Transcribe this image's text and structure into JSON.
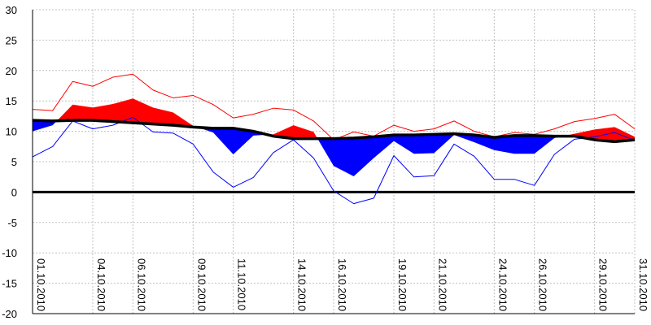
{
  "chart_data": {
    "type": "area",
    "title": "",
    "xlabel": "",
    "ylabel": "",
    "ylim": [
      -20,
      30
    ],
    "y_ticks": [
      30,
      25,
      20,
      15,
      10,
      5,
      0,
      -5,
      -10,
      -15,
      -20
    ],
    "grid": true,
    "x_tick_labels": [
      {
        "day": 1,
        "label": "01.10.2010"
      },
      {
        "day": 4,
        "label": "04.10.2010"
      },
      {
        "day": 6,
        "label": "06.10.2010"
      },
      {
        "day": 9,
        "label": "09.10.2010"
      },
      {
        "day": 11,
        "label": "11.10.2010"
      },
      {
        "day": 14,
        "label": "14.10.2010"
      },
      {
        "day": 16,
        "label": "16.10.2010"
      },
      {
        "day": 19,
        "label": "19.10.2010"
      },
      {
        "day": 21,
        "label": "21.10.2010"
      },
      {
        "day": 24,
        "label": "24.10.2010"
      },
      {
        "day": 26,
        "label": "26.10.2010"
      },
      {
        "day": 29,
        "label": "29.10.2010"
      },
      {
        "day": 31,
        "label": "31.10.2010"
      }
    ],
    "days": [
      1,
      2,
      3,
      4,
      5,
      6,
      7,
      8,
      9,
      10,
      11,
      12,
      13,
      14,
      15,
      16,
      17,
      18,
      19,
      20,
      21,
      22,
      23,
      24,
      25,
      26,
      27,
      28,
      29,
      30,
      31
    ],
    "series": [
      {
        "role": "max",
        "values": [
          13.6,
          13.4,
          18.2,
          17.4,
          18.9,
          19.4,
          16.8,
          15.5,
          15.9,
          14.4,
          12.2,
          12.8,
          13.8,
          13.5,
          11.7,
          8.6,
          9.9,
          9.2,
          11.0,
          10.0,
          10.4,
          11.7,
          10.0,
          9.1,
          9.8,
          9.5,
          10.4,
          11.6,
          12.1,
          12.8,
          10.4
        ]
      },
      {
        "role": "daily_mean",
        "values": [
          10.0,
          11.0,
          14.4,
          13.9,
          14.5,
          15.4,
          13.9,
          13.1,
          10.9,
          9.8,
          6.2,
          9.3,
          9.5,
          11.0,
          9.9,
          4.3,
          2.6,
          5.6,
          8.4,
          6.3,
          6.4,
          9.4,
          8.2,
          6.9,
          6.3,
          6.3,
          8.9,
          9.6,
          10.3,
          10.7,
          9.1
        ]
      },
      {
        "role": "long_term_mean",
        "values": [
          11.8,
          11.7,
          11.8,
          11.8,
          11.6,
          11.4,
          11.2,
          11.0,
          10.7,
          10.5,
          10.5,
          10.0,
          9.2,
          8.8,
          8.8,
          8.8,
          8.9,
          9.1,
          9.4,
          9.4,
          9.5,
          9.6,
          9.4,
          9.0,
          9.3,
          9.3,
          9.2,
          9.2,
          8.6,
          8.3,
          8.6
        ]
      },
      {
        "role": "min",
        "values": [
          5.8,
          7.5,
          11.7,
          10.4,
          11.0,
          12.3,
          9.9,
          9.7,
          7.9,
          3.3,
          0.8,
          2.4,
          6.5,
          8.6,
          5.6,
          0.2,
          -1.9,
          -1.0,
          6.0,
          2.5,
          2.7,
          7.9,
          5.9,
          2.1,
          2.1,
          1.1,
          6.2,
          8.7,
          9.1,
          9.8,
          8.5
        ]
      }
    ],
    "colors": {
      "above_fill": "#ff0000",
      "below_fill": "#0000ff",
      "max_line": "#ff0000",
      "min_line": "#0000ff",
      "mean_line": "#000000",
      "zero_line": "#000000",
      "grid": "#c0c0c0"
    }
  }
}
